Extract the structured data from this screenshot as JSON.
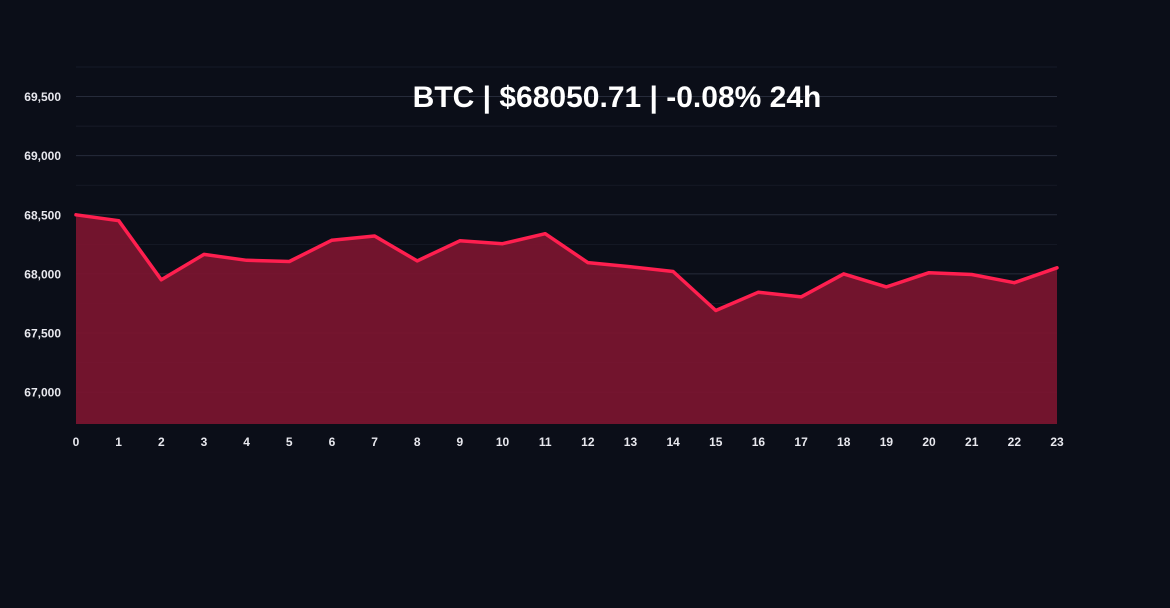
{
  "chart_data": {
    "type": "area",
    "title": "BTC | $68050.71 | -0.08% 24h",
    "xlabel": "",
    "ylabel": "",
    "x": [
      0,
      1,
      2,
      3,
      4,
      5,
      6,
      7,
      8,
      9,
      10,
      11,
      12,
      13,
      14,
      15,
      16,
      17,
      18,
      19,
      20,
      21,
      22,
      23
    ],
    "x_tick_labels": [
      "0",
      "1",
      "2",
      "3",
      "4",
      "5",
      "6",
      "7",
      "8",
      "9",
      "10",
      "11",
      "12",
      "13",
      "14",
      "15",
      "16",
      "17",
      "18",
      "19",
      "20",
      "21",
      "22",
      "23"
    ],
    "series": [
      {
        "values": [
          68500,
          68450,
          67950,
          68165,
          68115,
          68105,
          68285,
          68320,
          68110,
          68280,
          68255,
          68340,
          68095,
          68060,
          68020,
          67690,
          67845,
          67805,
          68000,
          67890,
          68010,
          67995,
          67925,
          68051
        ]
      }
    ],
    "ylim": [
      66730,
      69750
    ],
    "y_ticks": [
      67000,
      67500,
      68000,
      68500,
      69000,
      69500
    ],
    "y_tick_labels": [
      "67,000",
      "67,500",
      "68,000",
      "68,500",
      "69,000",
      "69,500"
    ],
    "grid": true,
    "legend": "none",
    "colors": {
      "background": "#0b0e18",
      "line": "#ff1f4f",
      "fill": "#7c1530",
      "grid": "#262b3a"
    }
  }
}
